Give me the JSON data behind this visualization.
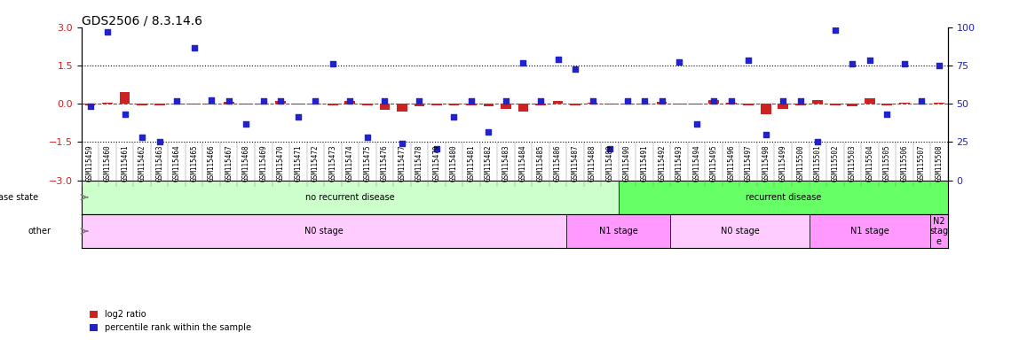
{
  "title": "GDS2506 / 8.3.14.6",
  "samples": [
    "GSM115459",
    "GSM115460",
    "GSM115461",
    "GSM115462",
    "GSM115463",
    "GSM115464",
    "GSM115465",
    "GSM115466",
    "GSM115467",
    "GSM115468",
    "GSM115469",
    "GSM115470",
    "GSM115471",
    "GSM115472",
    "GSM115473",
    "GSM115474",
    "GSM115475",
    "GSM115476",
    "GSM115477",
    "GSM115478",
    "GSM115479",
    "GSM115480",
    "GSM115481",
    "GSM115482",
    "GSM115483",
    "GSM115484",
    "GSM115485",
    "GSM115486",
    "GSM115487",
    "GSM115488",
    "GSM115489",
    "GSM115490",
    "GSM115491",
    "GSM115492",
    "GSM115493",
    "GSM115494",
    "GSM115495",
    "GSM115496",
    "GSM115497",
    "GSM115498",
    "GSM115499",
    "GSM115500",
    "GSM115501",
    "GSM115502",
    "GSM115503",
    "GSM115504",
    "GSM115505",
    "GSM115506",
    "GSM115507",
    "GSM115508"
  ],
  "log2_ratio": [
    -0.05,
    0.05,
    0.45,
    -0.05,
    -0.05,
    -0.02,
    -0.03,
    -0.02,
    0.08,
    -0.02,
    -0.02,
    0.1,
    -0.02,
    -0.02,
    -0.05,
    0.1,
    -0.05,
    -0.25,
    -0.3,
    -0.1,
    -0.05,
    -0.05,
    -0.05,
    -0.1,
    -0.2,
    -0.3,
    -0.05,
    0.1,
    -0.05,
    0.05,
    -0.02,
    -0.02,
    -0.02,
    0.08,
    -0.02,
    -0.02,
    0.15,
    0.05,
    -0.05,
    -0.4,
    -0.2,
    -0.05,
    0.15,
    -0.05,
    -0.1,
    0.2,
    -0.05,
    0.05,
    -0.02,
    0.05
  ],
  "percentile_rank": [
    -0.1,
    2.8,
    -0.4,
    -1.3,
    -1.5,
    0.1,
    2.2,
    0.15,
    0.1,
    -0.8,
    0.12,
    0.1,
    -0.5,
    0.1,
    1.55,
    0.1,
    -1.3,
    0.1,
    -1.55,
    0.1,
    -1.75,
    -0.5,
    0.1,
    -1.1,
    0.1,
    1.6,
    0.12,
    1.73,
    1.35,
    0.1,
    -1.75,
    0.1,
    0.1,
    0.1,
    1.62,
    -0.8,
    0.12,
    0.1,
    1.7,
    -1.2,
    0.12,
    0.1,
    -1.5,
    2.9,
    1.55,
    1.7,
    -0.4,
    1.55,
    0.12,
    1.5
  ],
  "ylim_left": [
    -3,
    3
  ],
  "ylim_right": [
    0,
    100
  ],
  "yticks_left": [
    -3,
    -1.5,
    0,
    1.5,
    3
  ],
  "yticks_right": [
    0,
    25,
    50,
    75,
    100
  ],
  "dotted_lines": [
    -1.5,
    1.5
  ],
  "zero_line": 0,
  "bar_color": "#cc2222",
  "dot_color": "#2222cc",
  "disease_state_segments": [
    {
      "label": "no recurrent disease",
      "start": 0,
      "end": 31,
      "color": "#ccffcc"
    },
    {
      "label": "recurrent disease",
      "start": 31,
      "end": 50,
      "color": "#66ff66"
    }
  ],
  "other_segments": [
    {
      "label": "N0 stage",
      "start": 0,
      "end": 28,
      "color": "#ffccff"
    },
    {
      "label": "N1 stage",
      "start": 28,
      "end": 34,
      "color": "#ff99ff"
    },
    {
      "label": "N0 stage",
      "start": 34,
      "end": 42,
      "color": "#ffccff"
    },
    {
      "label": "N1 stage",
      "start": 42,
      "end": 49,
      "color": "#ff99ff"
    },
    {
      "label": "N2\nstag\ne",
      "start": 49,
      "end": 50,
      "color": "#ff99ff"
    }
  ],
  "disease_row_label": "disease state",
  "other_row_label": "other",
  "legend_items": [
    {
      "label": "log2 ratio",
      "color": "#cc2222"
    },
    {
      "label": "percentile rank within the sample",
      "color": "#2222cc"
    }
  ]
}
